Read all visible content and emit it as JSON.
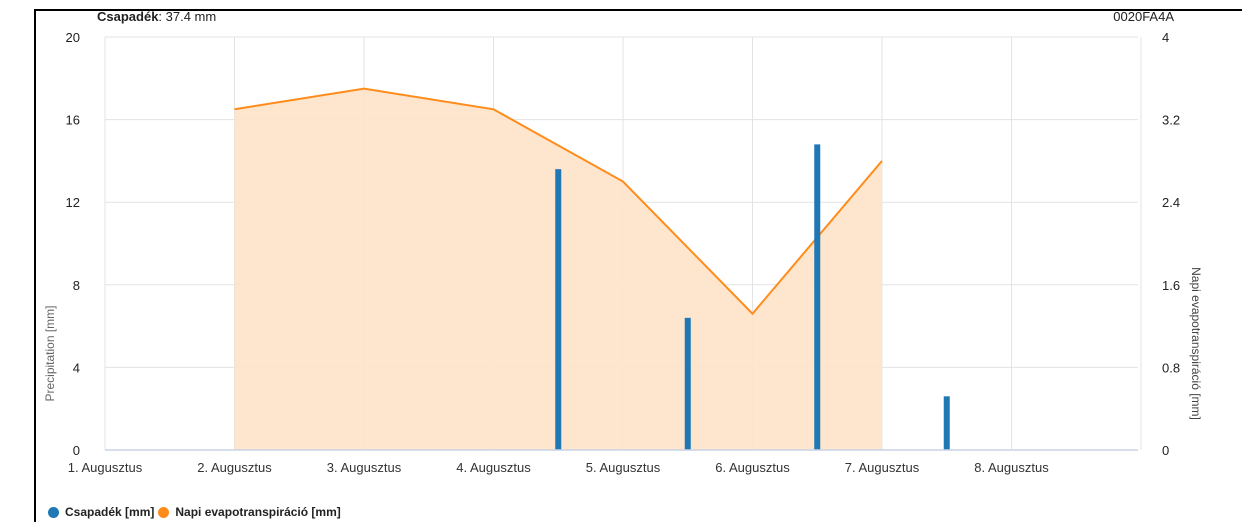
{
  "header": {
    "station_label": "Csapadék",
    "station_value": ": 37.4 mm",
    "device_id": "0020FA4A"
  },
  "colors": {
    "precip": "#1f77b4",
    "et_line": "#ff8c1a",
    "et_fill": "#fde3c8",
    "grid": "#e3e3e3",
    "axis": "#c9d3e6"
  },
  "chart_data": {
    "type": "bar+area",
    "categories": [
      "1. Augusztus",
      "2. Augusztus",
      "3. Augusztus",
      "4. Augusztus",
      "5. Augusztus",
      "6. Augusztus",
      "7. Augusztus",
      "8. Augusztus"
    ],
    "series": [
      {
        "name": "Csapadék [mm]",
        "type": "bar",
        "axis": "left",
        "points": [
          {
            "x": 3.5,
            "y": 13.6
          },
          {
            "x": 4.5,
            "y": 6.4
          },
          {
            "x": 5.5,
            "y": 14.8
          },
          {
            "x": 6.5,
            "y": 2.6
          }
        ]
      },
      {
        "name": "Napi evapotranspiráció [mm]",
        "type": "area",
        "axis": "right",
        "points": [
          {
            "x": 1,
            "y": 3.3
          },
          {
            "x": 2,
            "y": 3.5
          },
          {
            "x": 3,
            "y": 3.3
          },
          {
            "x": 4,
            "y": 2.6
          },
          {
            "x": 5,
            "y": 1.32
          },
          {
            "x": 6,
            "y": 2.8
          }
        ]
      }
    ],
    "y_left": {
      "label": "Precipitation [mm]",
      "min": 0,
      "max": 20,
      "ticks": [
        "0",
        "4",
        "8",
        "12",
        "16",
        "20"
      ]
    },
    "y_right": {
      "label": "Napi evapotranspiráció [mm]",
      "min": 0,
      "max": 4,
      "ticks": [
        "0",
        "0.8",
        "1.6",
        "2.4",
        "3.2",
        "4"
      ]
    },
    "x_range": [
      0,
      8
    ],
    "grid": true,
    "legend": "bottom-left"
  },
  "legend": {
    "items": [
      "Csapadék [mm]",
      "Napi evapotranspiráció [mm]"
    ]
  }
}
